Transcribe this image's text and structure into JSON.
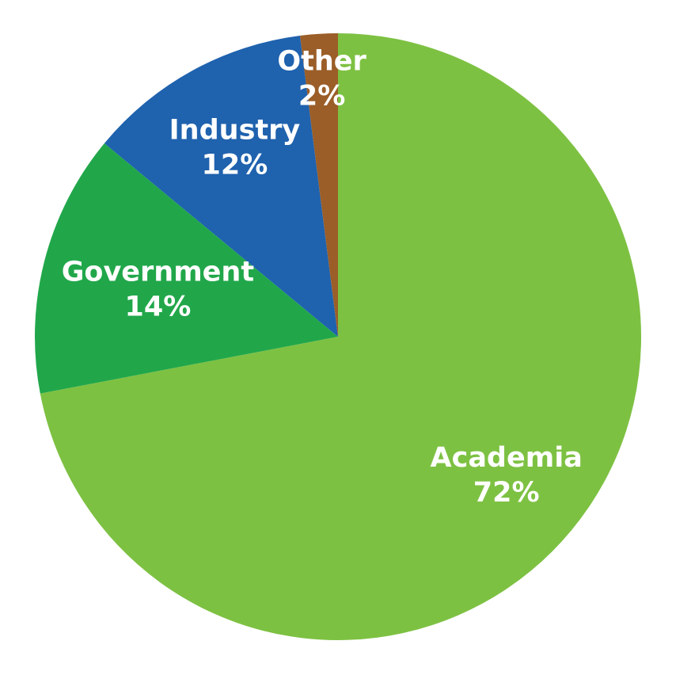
{
  "chart_data": {
    "type": "pie",
    "categories": [
      "Academia",
      "Government",
      "Industry",
      "Other"
    ],
    "values": [
      72,
      14,
      12,
      2
    ],
    "value_labels": [
      "72%",
      "14%",
      "12%",
      "2%"
    ],
    "colors": [
      "#7dc142",
      "#21a74a",
      "#1f62ae",
      "#9b5e28"
    ]
  }
}
